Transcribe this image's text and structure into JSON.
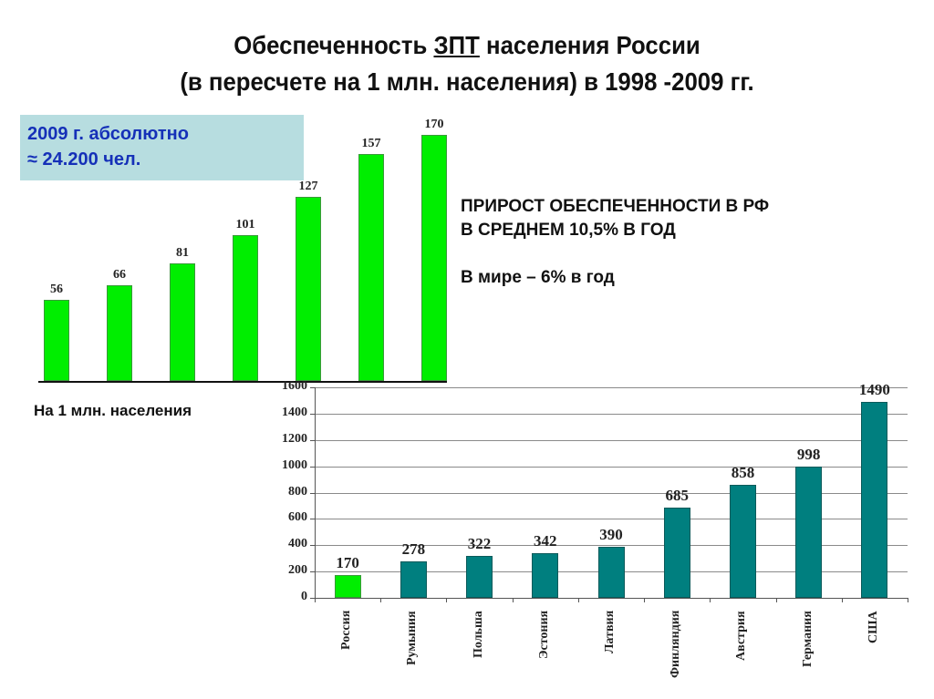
{
  "header": {
    "title_line1_prefix": "Обеспеченность ",
    "title_line1_underlined": "ЗПТ",
    "title_line1_suffix": " населения  России",
    "title_line2": "(в пересчете на 1 млн. населения) в 1998 -2009 гг."
  },
  "infobox": {
    "line1": "2009 г. абсолютно",
    "line2": "≈ 24.200 чел."
  },
  "notes": {
    "growth_line1": "ПРИРОСТ ОБЕСПЕЧЕННОСТИ В РФ",
    "growth_line2": "В СРЕДНЕМ 10,5% В ГОД",
    "world": "В мире – 6% в год"
  },
  "per_million_label": "На 1 млн. населения",
  "colors": {
    "russia_green": "#00ee00",
    "others_teal": "#007f7f",
    "infobox_bg": "#b7dde0",
    "infobox_text": "#1530b8"
  },
  "chart_data": [
    {
      "type": "bar",
      "title": "Обеспеченность ЗПТ населения России (в пересчете на 1 млн. населения) в 1998 -2009 гг.",
      "categories": [
        "",
        "",
        "",
        "",
        "",
        "",
        ""
      ],
      "values": [
        56,
        66,
        81,
        101,
        127,
        157,
        170
      ],
      "value_labels": [
        "56",
        "66",
        "81",
        "101",
        "127",
        "157",
        "170"
      ],
      "xlabel": "",
      "ylabel": "",
      "ylim": [
        0,
        170
      ],
      "grid": false,
      "axis_visible": false,
      "color": "#00ee00"
    },
    {
      "type": "bar",
      "title": "",
      "categories": [
        "Россия",
        "Румыния",
        "Польша",
        "Эстония",
        "Латвия",
        "Финляндия",
        "Австрия",
        "Германия",
        "США"
      ],
      "values": [
        170,
        278,
        322,
        342,
        390,
        685,
        858,
        998,
        1490
      ],
      "value_labels": [
        "170",
        "278",
        "322",
        "342",
        "390",
        "685",
        "858",
        "998",
        "1490"
      ],
      "bar_colors": [
        "#00ee00",
        "#007f7f",
        "#007f7f",
        "#007f7f",
        "#007f7f",
        "#007f7f",
        "#007f7f",
        "#007f7f",
        "#007f7f"
      ],
      "yticks": [
        "0",
        "200",
        "400",
        "600",
        "800",
        "1000",
        "1200",
        "1400",
        "1600"
      ],
      "ylim": [
        0,
        1600
      ],
      "grid": true,
      "xlabel": "",
      "ylabel": "На 1 млн. населения",
      "legend": "none"
    }
  ]
}
